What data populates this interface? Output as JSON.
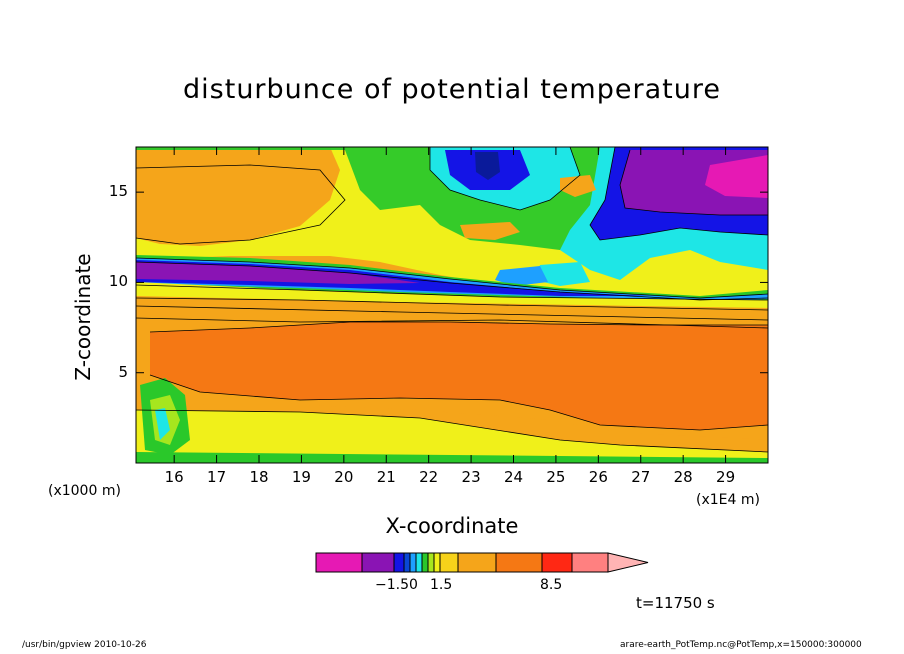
{
  "chart_data": {
    "type": "heatmap",
    "title": "disturbunce of potential temperature",
    "xlabel": "X-coordinate",
    "ylabel": "Z-coordinate",
    "x_unit_left": "(x1000 m)",
    "x_unit_right": "(x1E4 m)",
    "x_ticks": [
      "16",
      "17",
      "18",
      "19",
      "20",
      "21",
      "22",
      "23",
      "24",
      "25",
      "26",
      "27",
      "28",
      "29"
    ],
    "x_tick_values": [
      16,
      17,
      18,
      19,
      20,
      21,
      22,
      23,
      24,
      25,
      26,
      27,
      28,
      29
    ],
    "xlim": [
      15.1,
      30.0
    ],
    "y_ticks": [
      "5",
      "10",
      "15"
    ],
    "y_tick_values": [
      5,
      10,
      15
    ],
    "ylim": [
      0,
      17.5
    ],
    "colorbar": {
      "labels": [
        "−1.50",
        "1.5",
        "8.5"
      ],
      "label_values": [
        -1.5,
        1.5,
        8.5
      ],
      "colors": [
        "#e619b4",
        "#8a14b4",
        "#1414e6",
        "#0a47d6",
        "#1ea0ff",
        "#1ee6e6",
        "#2ac82a",
        "#a6e61e",
        "#f0f01a",
        "#f7d21a",
        "#f5a51a",
        "#f57814",
        "#ff2814",
        "#ff8080",
        "#ffb4b4"
      ]
    },
    "time_label": "t=11750 s",
    "grid": false
  },
  "footer": {
    "left": "/usr/bin/gpview   2010-10-26",
    "right": "arare-earth_PotTemp.nc@PotTemp,x=150000:300000"
  }
}
